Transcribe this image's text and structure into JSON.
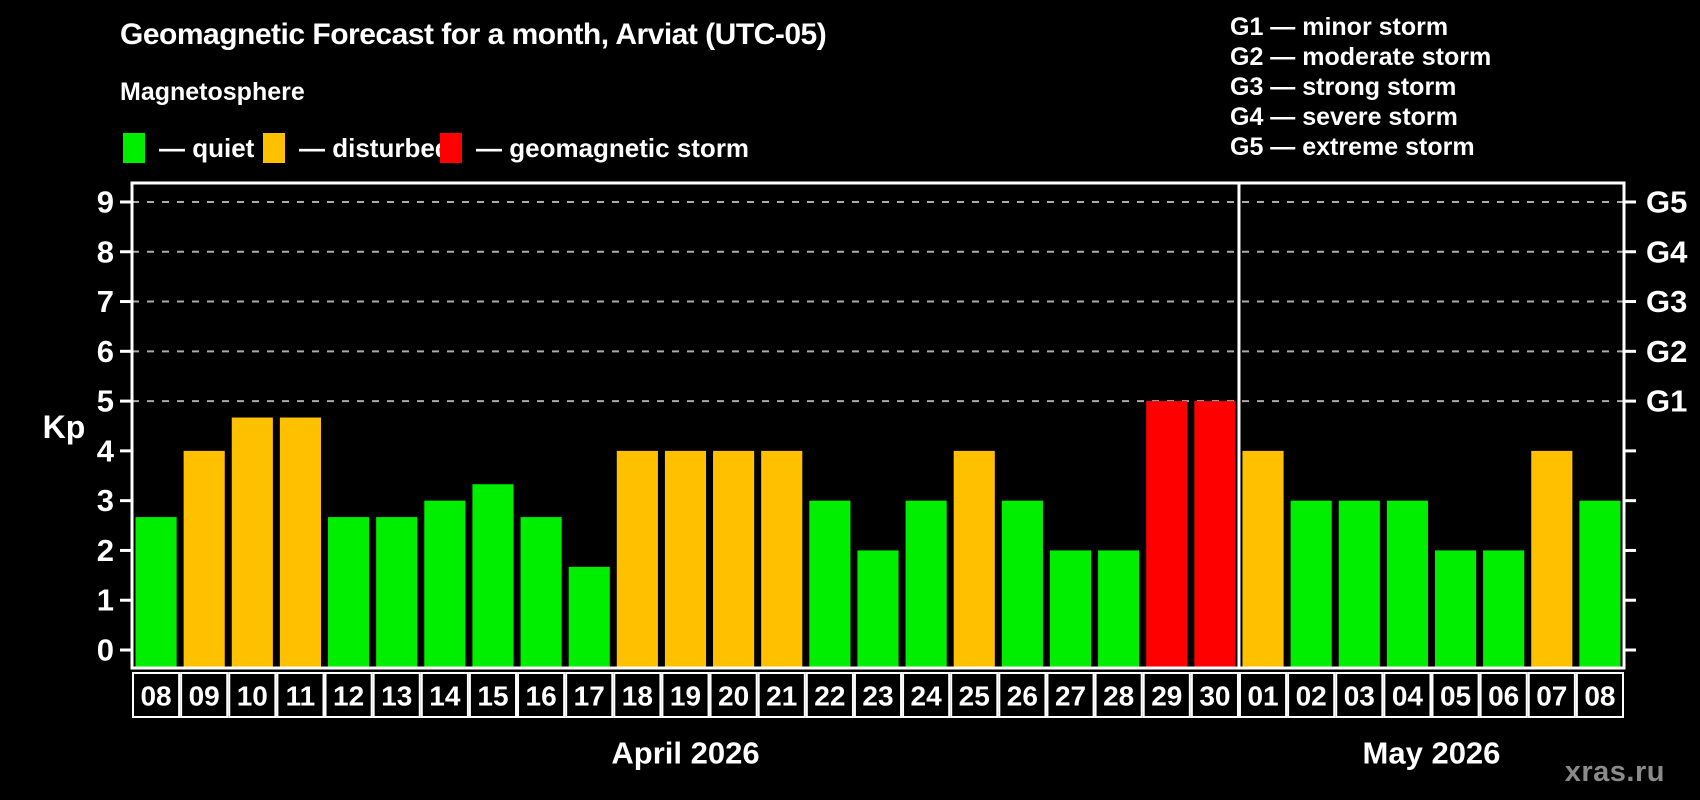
{
  "header": {
    "title": "Geomagnetic Forecast for a month, Arviat (UTC-05)",
    "subtitle": "Magnetosphere"
  },
  "legend": {
    "items": [
      {
        "name": "quiet",
        "label": "— quiet",
        "color": "#00ee00"
      },
      {
        "name": "disturbed",
        "label": "— disturbed",
        "color": "#ffc000"
      },
      {
        "name": "storm",
        "label": "— geomagnetic storm",
        "color": "#ff0000"
      }
    ]
  },
  "storm_legend": {
    "items": [
      "G1 — minor storm",
      "G2 — moderate storm",
      "G3 — strong storm",
      "G4 — severe storm",
      "G5 — extreme storm"
    ]
  },
  "watermark": "xras.ru",
  "chart_data": {
    "type": "bar",
    "ylabel": "Kp",
    "ylim": [
      0,
      9
    ],
    "yticks": [
      0,
      1,
      2,
      3,
      4,
      5,
      6,
      7,
      8,
      9
    ],
    "gridlines_at": [
      5,
      6,
      7,
      8,
      9
    ],
    "grid_color": "#aaaaaa",
    "right_axis_labels": [
      {
        "label": "G1",
        "kp": 5
      },
      {
        "label": "G2",
        "kp": 6
      },
      {
        "label": "G3",
        "kp": 7
      },
      {
        "label": "G4",
        "kp": 8
      },
      {
        "label": "G5",
        "kp": 9
      }
    ],
    "status_colors": {
      "quiet": "#00ee00",
      "disturbed": "#ffc000",
      "storm": "#ff0000"
    },
    "months": [
      {
        "label": "April 2026",
        "days": [
          {
            "day": "08",
            "kp": 2.67,
            "status": "quiet"
          },
          {
            "day": "09",
            "kp": 4,
            "status": "disturbed"
          },
          {
            "day": "10",
            "kp": 4.67,
            "status": "disturbed"
          },
          {
            "day": "11",
            "kp": 4.67,
            "status": "disturbed"
          },
          {
            "day": "12",
            "kp": 2.67,
            "status": "quiet"
          },
          {
            "day": "13",
            "kp": 2.67,
            "status": "quiet"
          },
          {
            "day": "14",
            "kp": 3,
            "status": "quiet"
          },
          {
            "day": "15",
            "kp": 3.33,
            "status": "quiet"
          },
          {
            "day": "16",
            "kp": 2.67,
            "status": "quiet"
          },
          {
            "day": "17",
            "kp": 1.67,
            "status": "quiet"
          },
          {
            "day": "18",
            "kp": 4,
            "status": "disturbed"
          },
          {
            "day": "19",
            "kp": 4,
            "status": "disturbed"
          },
          {
            "day": "20",
            "kp": 4,
            "status": "disturbed"
          },
          {
            "day": "21",
            "kp": 4,
            "status": "disturbed"
          },
          {
            "day": "22",
            "kp": 3,
            "status": "quiet"
          },
          {
            "day": "23",
            "kp": 2,
            "status": "quiet"
          },
          {
            "day": "24",
            "kp": 3,
            "status": "quiet"
          },
          {
            "day": "25",
            "kp": 4,
            "status": "disturbed"
          },
          {
            "day": "26",
            "kp": 3,
            "status": "quiet"
          },
          {
            "day": "27",
            "kp": 2,
            "status": "quiet"
          },
          {
            "day": "28",
            "kp": 2,
            "status": "quiet"
          },
          {
            "day": "29",
            "kp": 5,
            "status": "storm"
          },
          {
            "day": "30",
            "kp": 5,
            "status": "storm"
          }
        ]
      },
      {
        "label": "May 2026",
        "days": [
          {
            "day": "01",
            "kp": 4,
            "status": "disturbed"
          },
          {
            "day": "02",
            "kp": 3,
            "status": "quiet"
          },
          {
            "day": "03",
            "kp": 3,
            "status": "quiet"
          },
          {
            "day": "04",
            "kp": 3,
            "status": "quiet"
          },
          {
            "day": "05",
            "kp": 2,
            "status": "quiet"
          },
          {
            "day": "06",
            "kp": 2,
            "status": "quiet"
          },
          {
            "day": "07",
            "kp": 4,
            "status": "disturbed"
          },
          {
            "day": "08",
            "kp": 3,
            "status": "quiet"
          }
        ]
      }
    ]
  }
}
